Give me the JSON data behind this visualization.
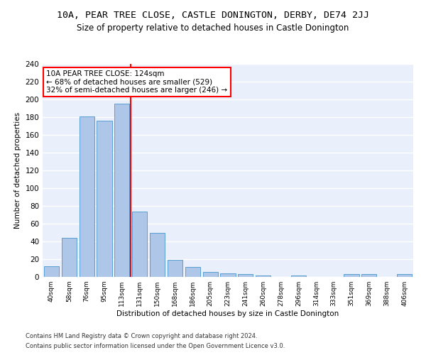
{
  "title1": "10A, PEAR TREE CLOSE, CASTLE DONINGTON, DERBY, DE74 2JJ",
  "title2": "Size of property relative to detached houses in Castle Donington",
  "xlabel": "Distribution of detached houses by size in Castle Donington",
  "ylabel": "Number of detached properties",
  "footer1": "Contains HM Land Registry data © Crown copyright and database right 2024.",
  "footer2": "Contains public sector information licensed under the Open Government Licence v3.0.",
  "categories": [
    "40sqm",
    "58sqm",
    "76sqm",
    "95sqm",
    "113sqm",
    "131sqm",
    "150sqm",
    "168sqm",
    "186sqm",
    "205sqm",
    "223sqm",
    "241sqm",
    "260sqm",
    "278sqm",
    "296sqm",
    "314sqm",
    "333sqm",
    "351sqm",
    "369sqm",
    "388sqm",
    "406sqm"
  ],
  "values": [
    12,
    44,
    181,
    176,
    195,
    74,
    50,
    19,
    11,
    6,
    4,
    3,
    2,
    0,
    2,
    0,
    0,
    3,
    3,
    0,
    3
  ],
  "bar_color": "#aec6e8",
  "bar_edge_color": "#5a9fd4",
  "vline_x": 4.5,
  "vline_color": "red",
  "annotation_text": "10A PEAR TREE CLOSE: 124sqm\n← 68% of detached houses are smaller (529)\n32% of semi-detached houses are larger (246) →",
  "annotation_box_color": "white",
  "annotation_box_edge_color": "red",
  "ylim": [
    0,
    240
  ],
  "yticks": [
    0,
    20,
    40,
    60,
    80,
    100,
    120,
    140,
    160,
    180,
    200,
    220,
    240
  ],
  "background_color": "#eaf0fb",
  "grid_color": "white",
  "title1_fontsize": 9.5,
  "title2_fontsize": 8.5,
  "annotation_fontsize": 7.5,
  "ylabel_fontsize": 7.5,
  "xlabel_fontsize": 7.5,
  "footer_fontsize": 6.0,
  "xtick_fontsize": 6.5,
  "ytick_fontsize": 7.5
}
